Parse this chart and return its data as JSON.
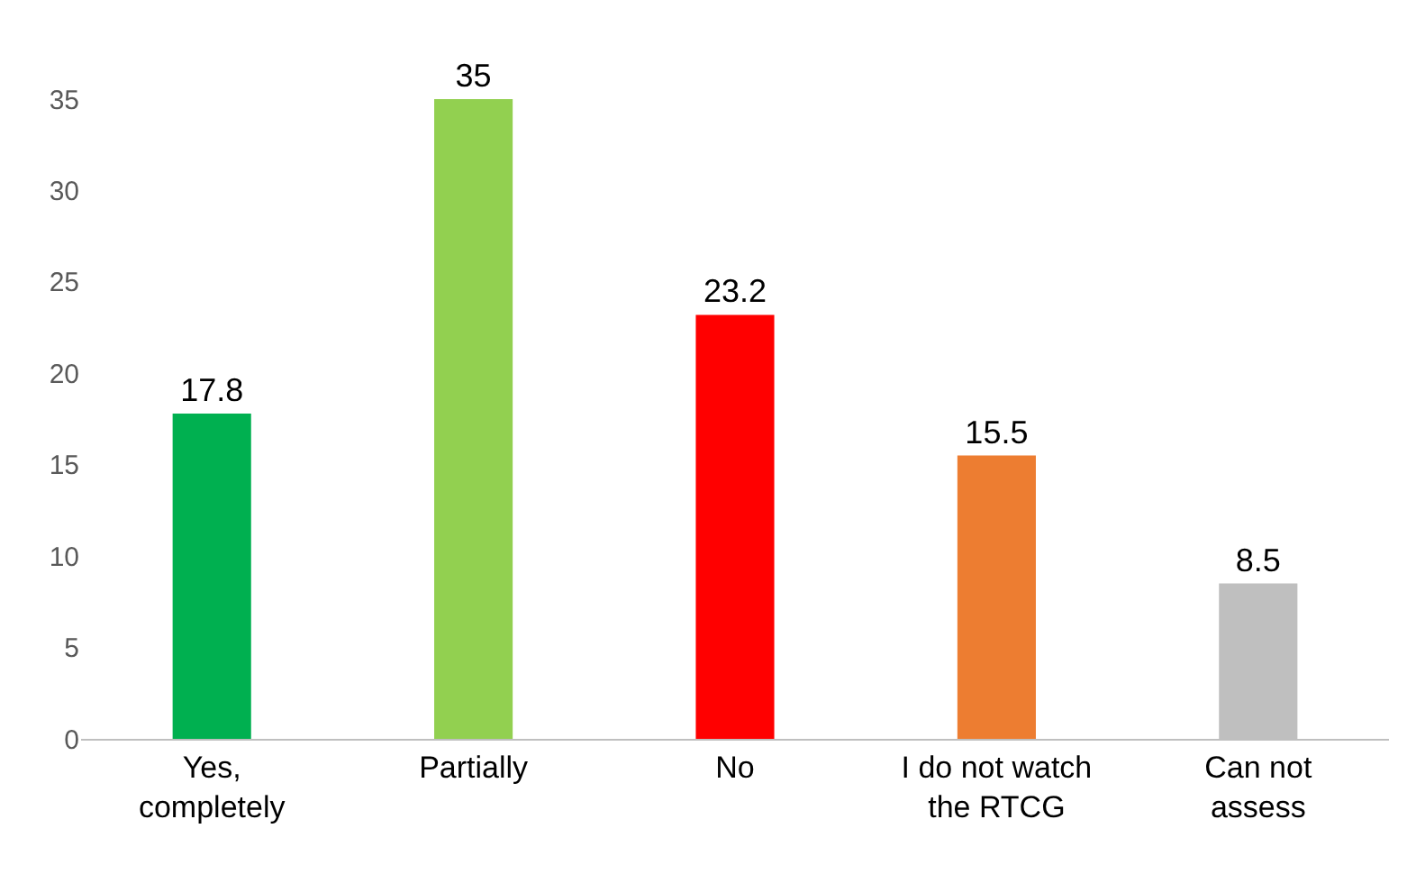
{
  "chart_data": {
    "type": "bar",
    "categories": [
      "Yes,\ncompletely",
      "Partially",
      "No",
      "I do not watch\nthe RTCG",
      "Can not\nassess"
    ],
    "values": [
      17.8,
      35,
      23.2,
      15.5,
      8.5
    ],
    "colors": [
      "#00b050",
      "#92d050",
      "#ff0000",
      "#ed7d31",
      "#bfbfbf"
    ],
    "ylim": [
      0,
      35
    ],
    "yticks": [
      0,
      5,
      10,
      15,
      20,
      25,
      30,
      35
    ],
    "data_labels": true,
    "grid": false,
    "legend": false
  }
}
